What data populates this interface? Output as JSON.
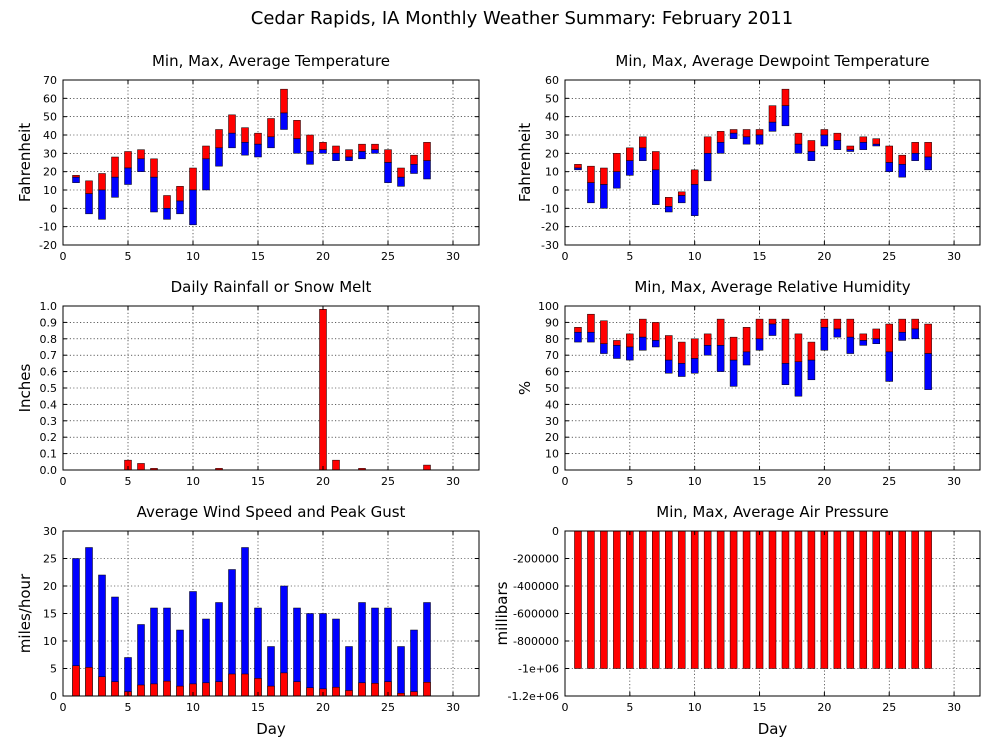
{
  "page": {
    "title": "Cedar Rapids, IA Monthly Weather Summary: February 2011"
  },
  "chart_data": [
    {
      "id": "temp",
      "type": "bar",
      "style": "floating-range",
      "title": "Min, Max, Average Temperature",
      "xlabel": "",
      "ylabel": "Fahrenheit",
      "xlim": [
        0,
        32
      ],
      "ylim": [
        -20,
        70
      ],
      "xticks": [
        0,
        5,
        10,
        15,
        20,
        25,
        30
      ],
      "yticks": [
        -20,
        -10,
        0,
        10,
        20,
        30,
        40,
        50,
        60,
        70
      ],
      "grid": true,
      "colors": {
        "upper": "#ff0000",
        "lower": "#0000ff"
      },
      "x": [
        1,
        2,
        3,
        4,
        5,
        6,
        7,
        8,
        9,
        10,
        11,
        12,
        13,
        14,
        15,
        16,
        17,
        18,
        19,
        20,
        21,
        22,
        23,
        24,
        25,
        26,
        27,
        28
      ],
      "min": [
        14,
        -3,
        -6,
        6,
        13,
        20,
        -2,
        -6,
        -3,
        -9,
        10,
        23,
        33,
        29,
        28,
        33,
        43,
        30,
        24,
        30,
        26,
        26,
        27,
        30,
        14,
        12,
        19,
        16
      ],
      "avg": [
        17,
        8,
        10,
        17,
        22,
        27,
        17,
        0,
        4,
        10,
        27,
        33,
        41,
        36,
        35,
        39,
        52,
        38,
        31,
        32,
        30,
        28,
        31,
        32,
        25,
        17,
        24,
        26
      ],
      "max": [
        18,
        15,
        19,
        28,
        31,
        32,
        27,
        7,
        12,
        22,
        34,
        43,
        51,
        44,
        41,
        49,
        65,
        48,
        40,
        36,
        34,
        32,
        35,
        35,
        32,
        22,
        29,
        36
      ]
    },
    {
      "id": "dewpoint",
      "type": "bar",
      "style": "floating-range",
      "title": "Min, Max, Average Dewpoint Temperature",
      "xlabel": "",
      "ylabel": "Fahrenheit",
      "xlim": [
        0,
        32
      ],
      "ylim": [
        -30,
        60
      ],
      "xticks": [
        0,
        5,
        10,
        15,
        20,
        25,
        30
      ],
      "yticks": [
        -30,
        -20,
        -10,
        0,
        10,
        20,
        30,
        40,
        50,
        60
      ],
      "grid": true,
      "colors": {
        "upper": "#ff0000",
        "lower": "#0000ff"
      },
      "x": [
        1,
        2,
        3,
        4,
        5,
        6,
        7,
        8,
        9,
        10,
        11,
        12,
        13,
        14,
        15,
        16,
        17,
        18,
        19,
        20,
        21,
        22,
        23,
        24,
        25,
        26,
        27,
        28
      ],
      "min": [
        11,
        -7,
        -10,
        1,
        8,
        16,
        -8,
        -12,
        -7,
        -14,
        5,
        20,
        28,
        25,
        25,
        32,
        35,
        20,
        16,
        24,
        22,
        21,
        22,
        24,
        10,
        7,
        16,
        11
      ],
      "avg": [
        12,
        4,
        3,
        10,
        16,
        23,
        11,
        -9,
        -3,
        3,
        20,
        26,
        31,
        29,
        30,
        37,
        46,
        25,
        21,
        30,
        27,
        22,
        26,
        25,
        15,
        14,
        20,
        18
      ],
      "max": [
        14,
        13,
        12,
        20,
        23,
        29,
        21,
        -4,
        -1,
        11,
        29,
        32,
        33,
        33,
        33,
        46,
        55,
        31,
        27,
        33,
        31,
        24,
        29,
        28,
        24,
        19,
        26,
        26
      ]
    },
    {
      "id": "precip",
      "type": "bar",
      "title": "Daily Rainfall or Snow Melt",
      "xlabel": "",
      "ylabel": "Inches",
      "xlim": [
        0,
        32
      ],
      "ylim": [
        0,
        1.0
      ],
      "xticks": [
        0,
        5,
        10,
        15,
        20,
        25,
        30
      ],
      "yticks": [
        0.0,
        0.1,
        0.2,
        0.3,
        0.4,
        0.5,
        0.6,
        0.7,
        0.8,
        0.9,
        1.0
      ],
      "ytick_labels": [
        "0.0",
        "0.1",
        "0.2",
        "0.3",
        "0.4",
        "0.5",
        "0.6",
        "0.7",
        "0.8",
        "0.9",
        "1.0"
      ],
      "grid": true,
      "colors": {
        "bar": "#ff0000"
      },
      "x": [
        1,
        2,
        3,
        4,
        5,
        6,
        7,
        8,
        9,
        10,
        11,
        12,
        13,
        14,
        15,
        16,
        17,
        18,
        19,
        20,
        21,
        22,
        23,
        24,
        25,
        26,
        27,
        28
      ],
      "values": [
        0,
        0,
        0,
        0,
        0.06,
        0.04,
        0.01,
        0,
        0,
        0,
        0,
        0.01,
        0,
        0,
        0,
        0,
        0,
        0,
        0,
        0.98,
        0.06,
        0,
        0.01,
        0,
        0,
        0,
        0,
        0.03
      ]
    },
    {
      "id": "humidity",
      "type": "bar",
      "style": "floating-range",
      "title": "Min, Max, Average Relative Humidity",
      "xlabel": "",
      "ylabel": "%",
      "xlim": [
        0,
        32
      ],
      "ylim": [
        0,
        100
      ],
      "xticks": [
        0,
        5,
        10,
        15,
        20,
        25,
        30
      ],
      "yticks": [
        0,
        10,
        20,
        30,
        40,
        50,
        60,
        70,
        80,
        90,
        100
      ],
      "grid": true,
      "colors": {
        "upper": "#ff0000",
        "lower": "#0000ff"
      },
      "x": [
        1,
        2,
        3,
        4,
        5,
        6,
        7,
        8,
        9,
        10,
        11,
        12,
        13,
        14,
        15,
        16,
        17,
        18,
        19,
        20,
        21,
        22,
        23,
        24,
        25,
        26,
        27,
        28
      ],
      "min": [
        78,
        78,
        71,
        68,
        67,
        73,
        75,
        59,
        57,
        59,
        70,
        60,
        51,
        64,
        73,
        82,
        52,
        45,
        55,
        73,
        81,
        71,
        76,
        77,
        54,
        79,
        80,
        49
      ],
      "avg": [
        84,
        84,
        77,
        76,
        75,
        81,
        79,
        67,
        65,
        68,
        76,
        76,
        67,
        72,
        80,
        89,
        65,
        66,
        67,
        87,
        86,
        81,
        79,
        80,
        72,
        84,
        86,
        71
      ],
      "max": [
        87,
        95,
        91,
        79,
        83,
        92,
        90,
        82,
        78,
        80,
        83,
        92,
        81,
        87,
        92,
        92,
        92,
        83,
        78,
        92,
        92,
        92,
        83,
        86,
        89,
        92,
        92,
        89
      ]
    },
    {
      "id": "wind",
      "type": "bar",
      "style": "overlay",
      "title": "Average Wind Speed and Peak Gust",
      "xlabel": "Day",
      "ylabel": "miles/hour",
      "xlim": [
        0,
        32
      ],
      "ylim": [
        0,
        30
      ],
      "xticks": [
        0,
        5,
        10,
        15,
        20,
        25,
        30
      ],
      "yticks": [
        0,
        5,
        10,
        15,
        20,
        25,
        30
      ],
      "grid": true,
      "colors": {
        "gust": "#0000ff",
        "avg": "#ff0000"
      },
      "x": [
        1,
        2,
        3,
        4,
        5,
        6,
        7,
        8,
        9,
        10,
        11,
        12,
        13,
        14,
        15,
        16,
        17,
        18,
        19,
        20,
        21,
        22,
        23,
        24,
        25,
        26,
        27,
        28
      ],
      "gust": [
        25,
        27,
        22,
        18,
        7,
        13,
        16,
        16,
        12,
        19,
        14,
        17,
        23,
        27,
        16,
        9,
        20,
        16,
        15,
        15,
        14,
        9,
        17,
        16,
        16,
        9,
        12,
        17
      ],
      "avg": [
        5.5,
        5.2,
        3.5,
        2.6,
        0.8,
        2.0,
        2.2,
        2.7,
        1.8,
        2.2,
        2.4,
        2.6,
        4.0,
        4.0,
        3.2,
        1.8,
        4.2,
        2.6,
        1.5,
        1.3,
        1.6,
        1.0,
        2.4,
        2.3,
        2.6,
        0.5,
        0.8,
        2.5
      ]
    },
    {
      "id": "pressure",
      "type": "bar",
      "style": "floating-range",
      "title": "Min, Max, Average Air Pressure",
      "xlabel": "Day",
      "ylabel": "millibars",
      "xlim": [
        0,
        32
      ],
      "ylim": [
        -1200000,
        0
      ],
      "xticks": [
        0,
        5,
        10,
        15,
        20,
        25,
        30
      ],
      "yticks": [
        -1200000,
        -1000000,
        -800000,
        -600000,
        -400000,
        -200000,
        0
      ],
      "ytick_labels": [
        "-1.2e+06",
        "-1e+06",
        "-800000",
        "-600000",
        "-400000",
        "-200000",
        "0"
      ],
      "grid": true,
      "colors": {
        "upper": "#ff0000",
        "lower": "#0000ff"
      },
      "x": [
        1,
        2,
        3,
        4,
        5,
        6,
        7,
        8,
        9,
        10,
        11,
        12,
        13,
        14,
        15,
        16,
        17,
        18,
        19,
        20,
        21,
        22,
        23,
        24,
        25,
        26,
        27,
        28
      ],
      "min": [
        -1000000,
        -1000000,
        -1000000,
        -1000000,
        -1000000,
        -1000000,
        -1000000,
        -1000000,
        -1000000,
        -1000000,
        -1000000,
        -1000000,
        -1000000,
        -1000000,
        -1000000,
        -1000000,
        -1000000,
        -1000000,
        -1000000,
        -1000000,
        -1000000,
        -1000000,
        -1000000,
        -1000000,
        -1000000,
        -1000000,
        -1000000,
        -1000000
      ],
      "avg": [
        -1000000,
        -1000000,
        -1000000,
        -1000000,
        -1000000,
        -1000000,
        -1000000,
        -1000000,
        -1000000,
        -1000000,
        -1000000,
        -1000000,
        -1000000,
        -1000000,
        -1000000,
        -1000000,
        -1000000,
        -1000000,
        -1000000,
        -1000000,
        -1000000,
        -1000000,
        -1000000,
        -1000000,
        -1000000,
        -1000000,
        -1000000,
        -1000000
      ],
      "max": [
        0,
        0,
        0,
        0,
        0,
        0,
        0,
        0,
        0,
        0,
        0,
        0,
        0,
        0,
        0,
        0,
        0,
        0,
        0,
        0,
        0,
        0,
        0,
        0,
        0,
        0,
        0,
        0
      ]
    }
  ]
}
